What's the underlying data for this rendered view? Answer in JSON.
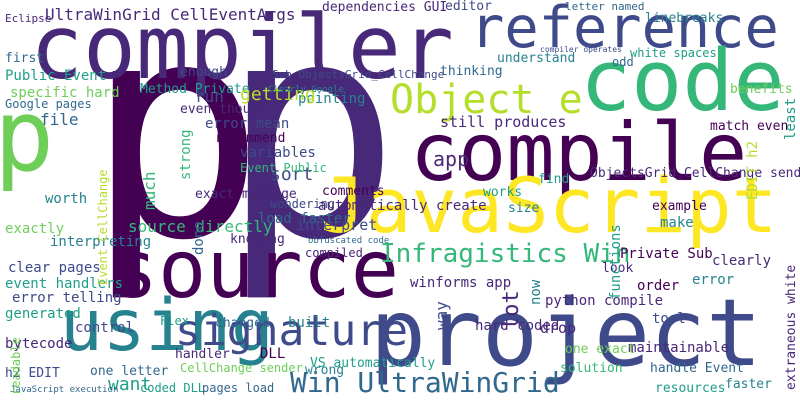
{
  "words": [
    "p",
    "p",
    "p",
    "compiler",
    "reference",
    "code",
    "compile",
    "JavaScript",
    "source",
    "project",
    "using",
    "signature",
    "Object e",
    "Infragistics Win",
    "Win UltraWinGrid",
    "UltraWinGrid CellEventArgs",
    "Eclipse",
    "dependencies GUI",
    "editor",
    "letter named",
    "linebreaks",
    "white spaces",
    "compiler operates",
    "understand",
    "odd",
    "benefits",
    "Public Event",
    "first",
    "specific hard",
    "enough",
    "Method Private",
    "Sub ObjectsGrid_CellChange",
    "pointing",
    "thinking",
    "Google pages",
    "file",
    "run",
    "getting",
    "even though",
    "Clearly Google",
    "error mean",
    "recommend",
    "variables",
    "sort",
    "Event Public",
    "exact message",
    "wondering",
    "load faster",
    "source directly",
    "knowing",
    "compiled",
    "interpret",
    "obfuscated code",
    "automatically create",
    "comments",
    "still produces",
    "app",
    "match even",
    "ObjectsGrid_CellChange sender",
    "find",
    "works",
    "size",
    "example",
    "exactly",
    "worth",
    "interpreting",
    "clear pages",
    "event handlers",
    "error telling",
    "generated",
    "control",
    "bytecode",
    "Flex",
    "CellChange sender",
    "handler",
    "DLL",
    "built",
    "changed",
    "one letter",
    "want",
    "h2 EDIT",
    "JavaScript execution",
    "coded DLL",
    "pages load",
    "wrong",
    "VS automatically",
    "hard coded",
    "drop",
    "python compile",
    "winforms app",
    "look",
    "Private Sub",
    "make",
    "clearly",
    "error",
    "order",
    "tool",
    "maintainable",
    "one exact",
    "solution",
    "handle Event",
    "faster",
    "resources",
    "strong",
    "much",
    "done",
    "lot",
    "now",
    "way",
    "functions",
    "extraneous white",
    "least",
    "Event CellChange",
    "readable",
    "EDIT h2"
  ]
}
